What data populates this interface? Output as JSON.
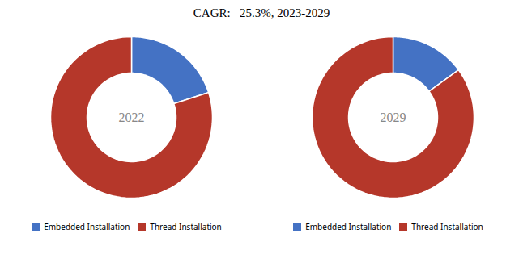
{
  "title": "CAGR:   25.3%, 2023-2029",
  "chart_data": [
    {
      "type": "pie",
      "annotations": [
        "2022"
      ],
      "categories": [
        "Embedded Installation",
        "Thread Installation"
      ],
      "values": [
        20,
        80
      ],
      "colors": [
        "#4472c4",
        "#b5372a"
      ],
      "legend": "bottom"
    },
    {
      "type": "pie",
      "annotations": [
        "2029"
      ],
      "categories": [
        "Embedded Installation",
        "Thread Installation"
      ],
      "values": [
        15,
        85
      ],
      "colors": [
        "#4472c4",
        "#b5372a"
      ],
      "legend": "bottom"
    }
  ]
}
